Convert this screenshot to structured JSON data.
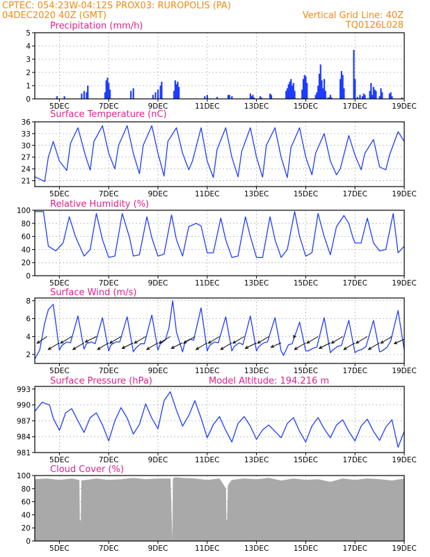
{
  "header": {
    "line1_left": "CPTEC:   054:23W-04:12S   PROX03: RUROPOLIS (PA)",
    "line2_left": "04DEC2020 40Z (GMT)",
    "line2_right": "Vertical Grid Line: 40Z",
    "line3_right": "TQ0126L028"
  },
  "colors": {
    "header": "#f08a10",
    "title": "#e0208a",
    "series": "#1e3cff",
    "cloud": "#a9a9a9",
    "arrow": "#000000"
  },
  "x_axis": {
    "start_day": 4.0,
    "end_day": 19.0,
    "tick_days": [
      5,
      7,
      9,
      11,
      13,
      15,
      17,
      19
    ],
    "tick_labels": [
      "5DEC",
      "7DEC",
      "9DEC",
      "11DEC",
      "13DEC",
      "15DEC",
      "17DEC",
      "19DEC"
    ]
  },
  "chart_data": [
    {
      "id": "precip",
      "type": "bar",
      "title": "Precipitation (mm/h)",
      "ylim": [
        0,
        5
      ],
      "yticks": [
        0,
        1,
        2,
        3,
        4,
        5
      ],
      "grid": true,
      "x_day": [
        4.9,
        5.2,
        5.9,
        6.0,
        6.1,
        6.15,
        6.85,
        6.9,
        6.95,
        7.0,
        7.05,
        7.9,
        8.0,
        8.8,
        8.9,
        9.0,
        9.1,
        9.15,
        9.65,
        9.7,
        9.75,
        9.8,
        9.85,
        10.9,
        11.0,
        11.4,
        11.85,
        11.9,
        12.0,
        12.75,
        12.8,
        12.85,
        12.9,
        13.15,
        13.2,
        13.55,
        13.6,
        14.2,
        14.25,
        14.3,
        14.35,
        14.4,
        14.45,
        14.5,
        14.55,
        14.85,
        14.9,
        14.95,
        15.0,
        15.05,
        15.4,
        15.45,
        15.5,
        15.55,
        15.6,
        15.65,
        15.7,
        15.75,
        15.8,
        15.9,
        15.95,
        16.0,
        16.05,
        16.4,
        16.45,
        16.5,
        16.55,
        16.95,
        17.0,
        17.1,
        17.2,
        17.3,
        17.35,
        17.4,
        17.6,
        17.65,
        17.7,
        17.75,
        17.8,
        17.85,
        18.0,
        18.05,
        18.1,
        18.4,
        18.45,
        18.5,
        18.9
      ],
      "values": [
        0.2,
        0.2,
        0.4,
        0.6,
        0.5,
        1.0,
        0.5,
        1.4,
        1.6,
        1.2,
        0.7,
        0.6,
        0.8,
        0.3,
        0.5,
        0.7,
        1.0,
        1.3,
        0.6,
        1.4,
        1.1,
        1.3,
        0.9,
        0.2,
        0.3,
        0.15,
        0.3,
        0.3,
        0.2,
        0.4,
        0.2,
        0.3,
        0.1,
        0.2,
        0.1,
        0.4,
        0.3,
        0.6,
        0.8,
        1.1,
        1.3,
        1.5,
        1.0,
        1.2,
        0.6,
        0.7,
        1.5,
        1.8,
        1.7,
        1.2,
        0.3,
        0.5,
        1.0,
        1.9,
        2.6,
        1.4,
        0.8,
        1.5,
        0.6,
        0.1,
        0.1,
        0.3,
        0.1,
        1.5,
        2.1,
        1.8,
        0.8,
        3.7,
        1.5,
        0.15,
        0.3,
        0.2,
        0.4,
        0.3,
        0.6,
        1.2,
        0.3,
        0.9,
        0.7,
        0.6,
        0.2,
        0.8,
        0.5,
        0.4,
        0.5,
        0.2,
        0.1
      ]
    },
    {
      "id": "temp",
      "type": "line",
      "title": "Surface Temperature (nC)",
      "ylim": [
        19.5,
        36
      ],
      "yticks": [
        21,
        24,
        27,
        30,
        33,
        36
      ],
      "grid": true,
      "x_day": [
        4.0,
        4.4,
        4.55,
        4.75,
        5.0,
        5.3,
        5.45,
        5.75,
        6.05,
        6.25,
        6.4,
        6.75,
        7.0,
        7.25,
        7.4,
        7.75,
        8.0,
        8.25,
        8.4,
        8.75,
        9.0,
        9.25,
        9.4,
        9.75,
        10.0,
        10.25,
        10.4,
        10.75,
        11.0,
        11.25,
        11.4,
        11.75,
        12.0,
        12.25,
        12.4,
        12.75,
        13.0,
        13.25,
        13.4,
        13.75,
        14.0,
        14.25,
        14.4,
        14.75,
        15.0,
        15.25,
        15.4,
        15.75,
        16.0,
        16.25,
        16.4,
        16.75,
        17.0,
        17.25,
        17.4,
        17.75,
        18.0,
        18.25,
        18.4,
        18.75,
        19.0
      ],
      "values": [
        22.0,
        20.8,
        27.0,
        31.0,
        26.0,
        23.6,
        30.5,
        34.5,
        27.5,
        23.7,
        31.0,
        35.0,
        28.0,
        24.0,
        30.0,
        35.0,
        28.0,
        22.8,
        30.0,
        35.0,
        28.0,
        22.2,
        31.0,
        34.5,
        28.0,
        23.8,
        26.0,
        34.5,
        26.0,
        21.8,
        29.0,
        34.5,
        27.0,
        22.0,
        28.5,
        34.5,
        27.0,
        21.9,
        30.0,
        34.5,
        27.0,
        21.8,
        29.5,
        34.5,
        27.0,
        22.5,
        28.0,
        33.0,
        26.0,
        22.5,
        24.0,
        32.5,
        27.5,
        23.8,
        28.0,
        31.5,
        24.5,
        23.8,
        27.5,
        33.5,
        31.0
      ]
    },
    {
      "id": "rh",
      "type": "line",
      "title": "Relative Humidity (%)",
      "ylim": [
        0,
        100
      ],
      "yticks": [
        0,
        20,
        40,
        60,
        80,
        100
      ],
      "grid": true,
      "x_day": [
        4.0,
        4.35,
        4.55,
        4.85,
        5.15,
        5.4,
        5.65,
        6.0,
        6.25,
        6.5,
        6.75,
        7.0,
        7.25,
        7.55,
        7.85,
        8.0,
        8.25,
        8.55,
        8.75,
        9.0,
        9.25,
        9.55,
        9.75,
        10.0,
        10.25,
        10.55,
        10.75,
        11.0,
        11.25,
        11.55,
        11.75,
        12.0,
        12.25,
        12.55,
        12.75,
        13.0,
        13.25,
        13.55,
        13.75,
        14.0,
        14.25,
        14.55,
        14.75,
        15.0,
        15.25,
        15.5,
        15.75,
        16.0,
        16.25,
        16.55,
        16.75,
        16.9,
        17.0,
        17.25,
        17.5,
        17.75,
        18.0,
        18.25,
        18.55,
        18.75,
        19.0
      ],
      "values": [
        98,
        98,
        45,
        38,
        50,
        90,
        60,
        30,
        40,
        95,
        55,
        28,
        30,
        95,
        58,
        30,
        32,
        90,
        58,
        30,
        33,
        93,
        55,
        30,
        75,
        80,
        76,
        35,
        35,
        88,
        55,
        28,
        30,
        90,
        60,
        28,
        28,
        90,
        55,
        28,
        40,
        98,
        60,
        30,
        35,
        95,
        60,
        32,
        75,
        92,
        80,
        60,
        50,
        50,
        88,
        50,
        38,
        40,
        95,
        35,
        45
      ]
    },
    {
      "id": "wind",
      "type": "line",
      "title": "Surface Wind (m/s)",
      "ylim": [
        1,
        8.3
      ],
      "yticks": [
        2,
        4,
        6,
        8
      ],
      "grid": true,
      "x_day": [
        4.0,
        4.2,
        4.4,
        4.55,
        4.75,
        5.0,
        5.1,
        5.3,
        5.45,
        5.75,
        6.0,
        6.1,
        6.3,
        6.45,
        6.75,
        7.0,
        7.1,
        7.3,
        7.45,
        7.75,
        8.0,
        8.1,
        8.3,
        8.45,
        8.75,
        9.0,
        9.1,
        9.3,
        9.45,
        9.6,
        9.75,
        10.0,
        10.1,
        10.3,
        10.45,
        10.75,
        11.0,
        11.1,
        11.3,
        11.45,
        11.75,
        12.0,
        12.1,
        12.3,
        12.45,
        12.75,
        13.0,
        13.1,
        13.3,
        13.45,
        13.75,
        14.0,
        14.1,
        14.3,
        14.45,
        14.75,
        15.0,
        15.1,
        15.3,
        15.45,
        15.75,
        16.0,
        16.1,
        16.3,
        16.45,
        16.75,
        17.0,
        17.1,
        17.3,
        17.45,
        17.75,
        18.0,
        18.1,
        18.3,
        18.45,
        18.75,
        19.0
      ],
      "values": [
        1.5,
        2.5,
        5.5,
        7.0,
        7.6,
        2.5,
        3.0,
        3.4,
        3.3,
        6.3,
        2.6,
        3.2,
        3.4,
        3.2,
        6.1,
        2.4,
        3.1,
        3.4,
        3.4,
        6.2,
        2.3,
        2.7,
        3.2,
        3.2,
        6.4,
        2.5,
        3.2,
        3.6,
        5.0,
        8.0,
        4.5,
        2.3,
        3.4,
        3.7,
        3.6,
        7.2,
        2.4,
        3.0,
        3.4,
        3.3,
        6.2,
        2.4,
        2.9,
        3.3,
        3.1,
        6.3,
        2.4,
        2.9,
        3.3,
        3.4,
        6.1,
        2.4,
        1.9,
        3.1,
        3.2,
        5.6,
        2.4,
        2.4,
        2.7,
        2.8,
        6.1,
        2.2,
        2.5,
        2.9,
        3.0,
        5.8,
        2.2,
        2.4,
        2.6,
        2.9,
        5.8,
        2.3,
        2.4,
        2.8,
        3.5,
        6.9,
        2.5
      ],
      "arrows": {
        "x_day": [
          4.5,
          5.0,
          5.5,
          6.0,
          6.5,
          7.0,
          7.5,
          8.0,
          8.5,
          9.0,
          9.5,
          10.0,
          10.5,
          11.0,
          11.5,
          12.0,
          12.5,
          13.0,
          13.5,
          14.0,
          14.5,
          15.0,
          15.5,
          16.0,
          16.5,
          17.0,
          17.5,
          18.0,
          18.5,
          19.0
        ],
        "y_speed": [
          4.0,
          3.3,
          4.0,
          3.3,
          4.0,
          3.3,
          4.0,
          3.3,
          4.0,
          3.3,
          4.0,
          3.3,
          4.0,
          3.3,
          4.0,
          3.3,
          4.0,
          3.3,
          4.0,
          3.3,
          4.0,
          3.3,
          4.0,
          3.3,
          4.0,
          3.3,
          4.0,
          3.3,
          4.0,
          3.7
        ],
        "u": [
          -0.9,
          -1.0,
          -1.0,
          -1.0,
          -1.0,
          -1.0,
          -1.0,
          -1.0,
          -1.0,
          -1.0,
          -1.0,
          -1.0,
          -1.0,
          -1.0,
          -1.0,
          -1.0,
          -1.0,
          -1.0,
          -1.0,
          -0.9,
          0.2,
          -1.0,
          -1.0,
          -1.0,
          -1.0,
          -1.0,
          -1.0,
          -1.0,
          -1.0,
          -0.9
        ],
        "v": [
          -0.6,
          -0.6,
          -0.6,
          -0.6,
          -0.5,
          -0.6,
          -0.6,
          -0.5,
          -0.6,
          -0.6,
          -0.6,
          -0.5,
          -0.6,
          -0.6,
          -0.6,
          -0.6,
          -0.6,
          -0.5,
          -0.6,
          -0.4,
          0.0,
          -0.6,
          -0.6,
          -0.5,
          -0.6,
          -0.6,
          -0.6,
          -0.6,
          -0.6,
          -0.4
        ]
      }
    },
    {
      "id": "press",
      "type": "line",
      "title": "Surface Pressure (hPa)",
      "annotation": "Model Altitude: 194.216 m",
      "ylim": [
        981,
        993.5
      ],
      "yticks": [
        981,
        984,
        987,
        990,
        993
      ],
      "ytick_labels": [
        "981",
        "984",
        "987",
        "990",
        "993"
      ],
      "grid": true,
      "x_day": [
        4.0,
        4.3,
        4.6,
        4.75,
        5.0,
        5.25,
        5.5,
        5.75,
        6.0,
        6.25,
        6.5,
        6.75,
        7.0,
        7.25,
        7.5,
        7.75,
        8.0,
        8.25,
        8.5,
        8.75,
        9.0,
        9.25,
        9.5,
        9.75,
        10.0,
        10.25,
        10.5,
        10.75,
        11.0,
        11.25,
        11.5,
        11.75,
        12.0,
        12.25,
        12.5,
        12.75,
        13.0,
        13.25,
        13.5,
        13.75,
        14.0,
        14.25,
        14.5,
        14.75,
        15.0,
        15.25,
        15.5,
        15.75,
        16.0,
        16.25,
        16.5,
        16.75,
        17.0,
        17.25,
        17.5,
        17.75,
        18.0,
        18.25,
        18.5,
        18.75,
        19.0
      ],
      "values": [
        988.8,
        990.5,
        990.0,
        987.5,
        985.2,
        988.5,
        989.3,
        987.0,
        984.8,
        987.6,
        988.5,
        986.2,
        983.2,
        987.0,
        989.5,
        987.5,
        984.5,
        986.3,
        990.2,
        987.5,
        985.5,
        990.8,
        992.5,
        989.0,
        986.0,
        988.0,
        990.8,
        987.5,
        983.8,
        986.3,
        987.8,
        985.2,
        983.0,
        986.5,
        987.8,
        986.0,
        983.5,
        985.3,
        986.2,
        985.0,
        983.8,
        986.5,
        987.6,
        985.0,
        983.0,
        986.0,
        987.6,
        985.5,
        983.8,
        986.2,
        987.2,
        985.0,
        983.2,
        986.0,
        987.3,
        985.0,
        983.3,
        985.8,
        987.2,
        982.0,
        985.0
      ]
    },
    {
      "id": "cloud",
      "type": "area",
      "title": "Cloud Cover (%)",
      "ylim": [
        0,
        100
      ],
      "yticks": [
        0,
        20,
        40,
        60,
        80,
        100
      ],
      "grid": true,
      "x_day": [
        4.0,
        4.5,
        5.0,
        5.5,
        5.8,
        5.82,
        5.88,
        5.9,
        6.5,
        7.0,
        7.5,
        8.0,
        8.5,
        9.0,
        9.5,
        9.58,
        9.6,
        9.62,
        9.7,
        10.0,
        10.5,
        11.0,
        11.5,
        11.75,
        11.77,
        11.82,
        11.85,
        12.0,
        12.5,
        13.0,
        13.5,
        14.0,
        14.5,
        15.0,
        15.5,
        16.0,
        16.5,
        17.0,
        17.5,
        18.0,
        18.5,
        19.0
      ],
      "values": [
        94,
        95,
        93,
        95,
        93,
        30,
        32,
        92,
        95,
        93,
        94,
        96,
        94,
        95,
        95,
        0,
        0,
        95,
        97,
        96,
        95,
        93,
        95,
        80,
        30,
        32,
        85,
        93,
        95,
        94,
        96,
        92,
        95,
        93,
        94,
        90,
        95,
        93,
        95,
        94,
        92,
        95
      ]
    }
  ]
}
